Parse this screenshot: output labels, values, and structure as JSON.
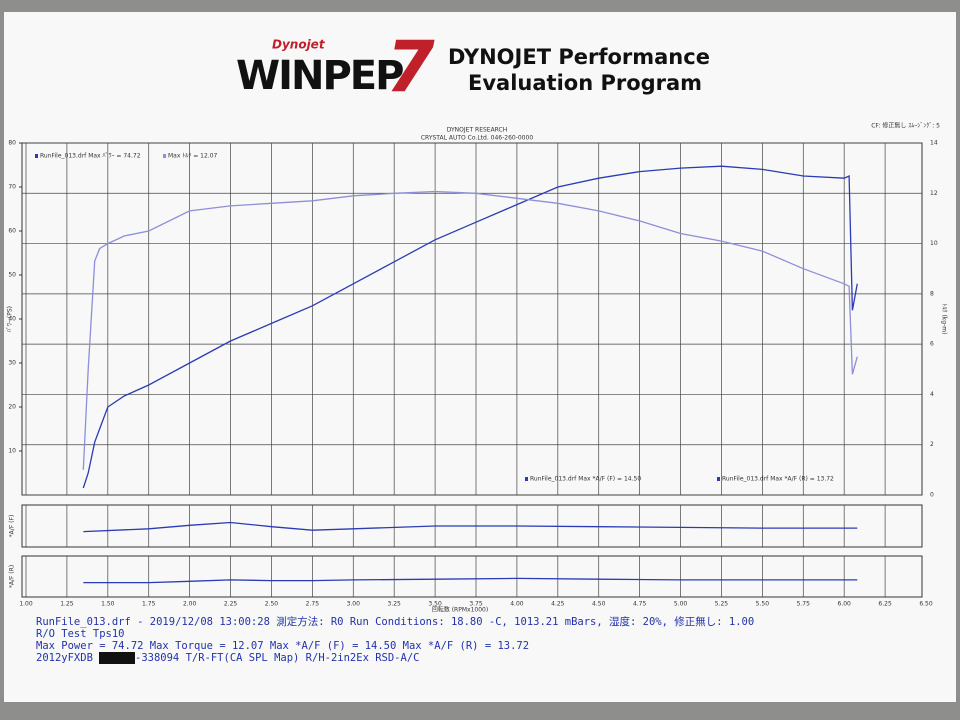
{
  "header": {
    "brand": "Dynojet",
    "logo": "WINPEP",
    "logo_number": "7",
    "title_line1": "DYNOJET Performance",
    "title_line2": "Evaluation Program",
    "company": "DYNOJET RESEARCH",
    "shop": "CRYSTAL AUTO Co.Ltd.  046-260-0000",
    "settings": "CF: 修正無し  ｽﾑｰｼﾞﾝｸﾞ: 5"
  },
  "chart_data": [
    {
      "type": "line",
      "xlabel": "回転数 (RPMx1000)",
      "ylabel": "ﾊﾟﾜｰ (PS)",
      "y2label": "ﾄﾙｸ (kg-m)",
      "x": [
        1.35,
        1.38,
        1.42,
        1.45,
        1.5,
        1.6,
        1.75,
        2.0,
        2.25,
        2.5,
        2.75,
        3.0,
        3.25,
        3.5,
        3.75,
        4.0,
        4.25,
        4.5,
        4.75,
        5.0,
        5.25,
        5.5,
        5.75,
        6.0,
        6.03,
        6.05,
        6.08
      ],
      "series": [
        {
          "name": "RunFile_013.drf Max ﾊﾟﾜｰ = 74.72",
          "color": "#2a3bb5",
          "values": [
            1.6,
            5,
            12,
            15,
            20,
            22.5,
            25,
            30,
            35,
            39,
            43,
            48,
            53,
            58,
            62,
            66,
            70,
            72,
            73.5,
            74.3,
            74.72,
            74,
            72.5,
            72,
            72.5,
            42,
            48
          ]
        },
        {
          "name": "Max ﾄﾙｸ = 12.07",
          "color": "#8d8fd8",
          "axis": "y2",
          "values": [
            1,
            5,
            9.3,
            9.8,
            10,
            10.3,
            10.5,
            11.3,
            11.5,
            11.6,
            11.7,
            11.9,
            12.0,
            12.07,
            12.0,
            11.8,
            11.6,
            11.3,
            10.9,
            10.4,
            10.1,
            9.7,
            9.0,
            8.4,
            8.3,
            4.8,
            5.5
          ]
        }
      ],
      "xlim": [
        1.0,
        6.5
      ],
      "xticks": [
        {
          "value": 1,
          "label": "1.00"
        },
        1.25,
        {
          "value": 1.5,
          "label": "1.50"
        },
        1.75,
        {
          "value": 2,
          "label": "2.00"
        },
        2.25,
        {
          "value": 2.5,
          "label": "2.50"
        },
        2.75,
        {
          "value": 3,
          "label": "3.00"
        },
        3.25,
        {
          "value": 3.5,
          "label": "3.50"
        },
        3.75,
        {
          "value": 4,
          "label": "4.00"
        },
        4.25,
        {
          "value": 4.5,
          "label": "4.50"
        },
        4.75,
        {
          "value": 5,
          "label": "5.00"
        },
        5.25,
        {
          "value": 5.5,
          "label": "5.50"
        },
        5.75,
        {
          "value": 6,
          "label": "6.00"
        },
        6.25,
        {
          "value": 6.5,
          "label": "6.50"
        }
      ],
      "ylim": [
        0,
        80
      ],
      "yticks": [
        10,
        20,
        30,
        40,
        50,
        60,
        70,
        80
      ],
      "y2lim": [
        0,
        14
      ],
      "y2ticks": [
        0,
        2,
        4,
        6,
        8,
        10,
        12,
        14
      ],
      "grid": true
    },
    {
      "type": "line",
      "ylabel": "*A/F (F)",
      "x": [
        1.35,
        1.75,
        2.0,
        2.25,
        2.5,
        2.75,
        3.0,
        3.5,
        4.0,
        4.5,
        5.0,
        5.5,
        6.08
      ],
      "ylim": [
        11,
        17
      ],
      "series": [
        {
          "name": "RunFile_013.drf Max *A/F (F) = 14.50",
          "color": "#2a3bb5",
          "values": [
            13.2,
            13.6,
            14.1,
            14.5,
            13.9,
            13.4,
            13.6,
            14.0,
            14.0,
            13.9,
            13.8,
            13.7,
            13.7
          ]
        }
      ]
    },
    {
      "type": "line",
      "ylabel": "*A/F (R)",
      "x": [
        1.35,
        1.75,
        2.0,
        2.25,
        2.5,
        2.75,
        3.0,
        3.5,
        4.0,
        4.5,
        5.0,
        5.5,
        6.08
      ],
      "ylim": [
        11,
        17
      ],
      "series": [
        {
          "name": "RunFile_013.drf Max *A/F (R) = 13.72",
          "color": "#2a3bb5",
          "values": [
            13.1,
            13.1,
            13.3,
            13.5,
            13.4,
            13.4,
            13.5,
            13.6,
            13.72,
            13.6,
            13.5,
            13.5,
            13.5
          ]
        }
      ]
    }
  ],
  "footer": {
    "line1": "RunFile_013.drf - 2019/12/08 13:00:28  測定方法: R0  Run Conditions: 18.80 -C, 1013.21 mBars, 湿度: 20%, 修正無し: 1.00",
    "line2": "R/O Test Tps10",
    "line3": "Max Power = 74.72  Max Torque = 12.07  Max *A/F (F) = 14.50  Max *A/F (R) = 13.72",
    "line4a": "2012yFXDB",
    "line4b": "-338094  T/R-FT(CA SPL Map)  R/H-2in2Ex RSD-A/C"
  }
}
